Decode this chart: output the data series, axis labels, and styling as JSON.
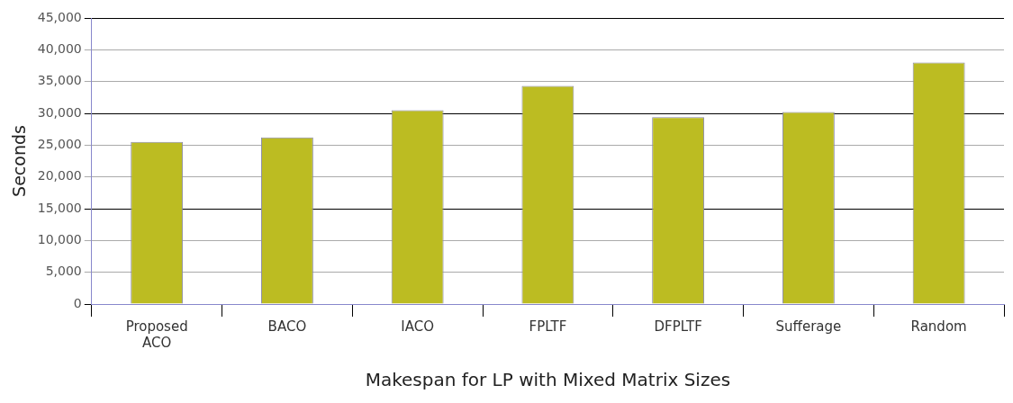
{
  "chart_data": {
    "type": "bar",
    "xlabel": "Makespan for LP with Mixed Matrix Sizes",
    "ylabel": "Seconds",
    "categories": [
      "Proposed ACO",
      "BACO",
      "IACO",
      "FPLTF",
      "DFPLTF",
      "Sufferage",
      "Random"
    ],
    "values": [
      25500,
      26200,
      30500,
      34300,
      29400,
      30200,
      38000
    ],
    "color": "#bcbc22",
    "ylim": [
      0,
      45000
    ],
    "yticks": [
      0,
      {
        "value": 5000,
        "label": "5,000"
      },
      {
        "value": 10000,
        "label": "10,000"
      },
      {
        "value": 15000,
        "label": "15,000"
      },
      {
        "value": 20000,
        "label": "20,000"
      },
      {
        "value": 25000,
        "label": "25,000"
      },
      {
        "value": 30000,
        "label": "30,000"
      },
      {
        "value": 35000,
        "label": "35,000"
      },
      {
        "value": 40000,
        "label": "40,000"
      },
      {
        "value": 45000,
        "label": "45,000"
      }
    ],
    "grid": "y",
    "legend": false
  }
}
